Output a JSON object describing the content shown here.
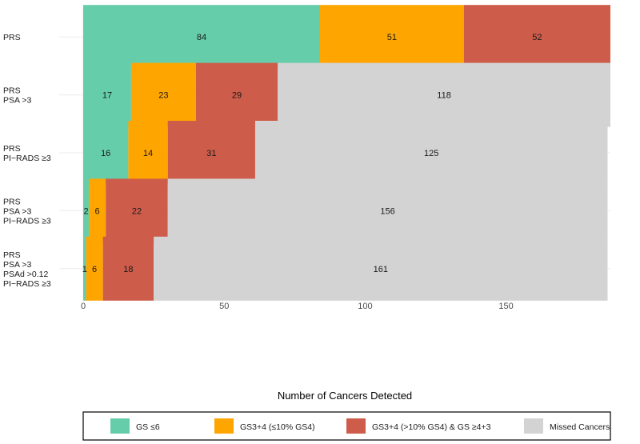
{
  "chart_data": {
    "type": "bar",
    "orientation": "horizontal",
    "stacked": true,
    "xlabel": "Number of Cancers Detected",
    "xlim": [
      0,
      187
    ],
    "xticks": [
      0,
      50,
      100,
      150
    ],
    "grid": true,
    "legend_position": "bottom",
    "categories": [
      [
        "PRS"
      ],
      [
        "PRS",
        "PSA >3"
      ],
      [
        "PRS",
        "PI−RADS ≥3"
      ],
      [
        "PRS",
        "PSA >3",
        "PI−RADS ≥3"
      ],
      [
        "PRS",
        "PSA >3",
        "PSAd >0.12",
        "PI−RADS ≥3"
      ]
    ],
    "series": [
      {
        "name": "GS ≤6",
        "color": "#66cdaa",
        "values": [
          84,
          17,
          16,
          2,
          1
        ]
      },
      {
        "name": "GS3+4 (≤10% GS4)",
        "color": "#ffa500",
        "values": [
          51,
          23,
          14,
          6,
          6
        ]
      },
      {
        "name": "GS3+4 (>10% GS4) & GS ≥4+3",
        "color": "#cd5c4a",
        "values": [
          52,
          29,
          31,
          22,
          18
        ]
      },
      {
        "name": "Missed Cancers",
        "color": "#d3d3d3",
        "values": [
          0,
          118,
          125,
          156,
          161
        ]
      }
    ]
  }
}
